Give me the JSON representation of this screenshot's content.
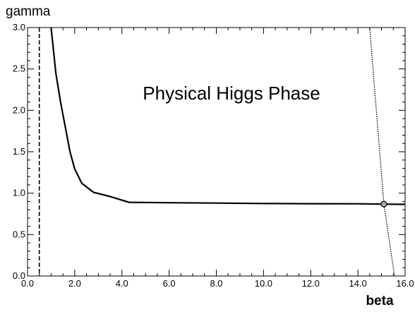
{
  "chart_data": {
    "type": "line",
    "xlabel": "beta",
    "ylabel": "gamma",
    "xlim": [
      0.0,
      16.0
    ],
    "ylim": [
      0.0,
      3.0
    ],
    "x_ticks": [
      "0.0",
      "2.0",
      "4.0",
      "6.0",
      "8.0",
      "10.0",
      "12.0",
      "14.0",
      "16.0"
    ],
    "y_ticks": [
      "0.0",
      "0.5",
      "1.0",
      "1.5",
      "2.0",
      "2.5",
      "3.0"
    ],
    "grid": false,
    "annotation": "Physical Higgs Phase",
    "series": [
      {
        "style": "solid",
        "points": [
          [
            1.0,
            3.0
          ],
          [
            1.2,
            2.45
          ],
          [
            1.4,
            2.1
          ],
          [
            1.6,
            1.8
          ],
          [
            1.8,
            1.5
          ],
          [
            2.0,
            1.29
          ],
          [
            2.3,
            1.12
          ],
          [
            2.8,
            1.01
          ],
          [
            3.5,
            0.96
          ],
          [
            4.3,
            0.89
          ],
          [
            6.0,
            0.885
          ],
          [
            8.0,
            0.88
          ],
          [
            10.0,
            0.875
          ],
          [
            12.0,
            0.873
          ],
          [
            14.0,
            0.872
          ],
          [
            15.1,
            0.868
          ],
          [
            16.0,
            0.865
          ]
        ]
      },
      {
        "style": "dashed",
        "points": [
          [
            0.5,
            3.0
          ],
          [
            0.5,
            0.0
          ]
        ]
      },
      {
        "style": "dotted",
        "points": [
          [
            14.5,
            3.0
          ],
          [
            15.1,
            0.868
          ],
          [
            15.55,
            0.0
          ]
        ]
      }
    ],
    "marker": {
      "x": 15.1,
      "y": 0.868
    }
  }
}
